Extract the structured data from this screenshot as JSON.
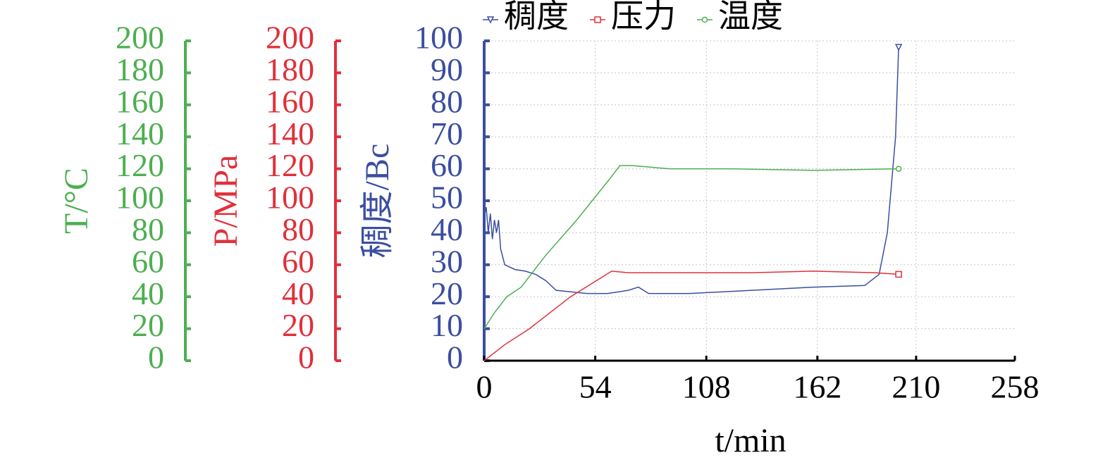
{
  "chart_data": {
    "type": "line",
    "xlabel": "t/min",
    "ylabel": "稠度/Bc",
    "y2label": "P/MPa",
    "y3label": "T/°C",
    "xlim": [
      0,
      258
    ],
    "xticks": [
      0,
      54,
      108,
      162,
      210,
      258
    ],
    "ylim": [
      0,
      100
    ],
    "yticks": [
      0,
      10,
      20,
      30,
      40,
      50,
      60,
      70,
      80,
      90,
      100
    ],
    "y2lim": [
      0,
      200
    ],
    "y2ticks": [
      0,
      20,
      40,
      60,
      80,
      100,
      120,
      140,
      160,
      180,
      200
    ],
    "y3lim": [
      0,
      200
    ],
    "y3ticks": [
      0,
      20,
      40,
      60,
      80,
      100,
      120,
      140,
      160,
      180,
      200
    ],
    "grid": true,
    "series": [
      {
        "name": "稠度",
        "color": "#3b4ea0",
        "axis": "y",
        "marker": "triangle",
        "x": [
          0,
          1,
          2,
          3,
          4,
          5,
          6,
          7,
          8,
          10,
          15,
          20,
          25,
          30,
          35,
          50,
          60,
          70,
          75,
          80,
          100,
          130,
          160,
          185,
          192,
          196,
          200,
          201.5
        ],
        "values": [
          45,
          48,
          40,
          46,
          38,
          44,
          40,
          44,
          35,
          30,
          28.5,
          28,
          27,
          25,
          22,
          21,
          21,
          22,
          23,
          21,
          21,
          22,
          23,
          23.5,
          27,
          40,
          70,
          98
        ]
      },
      {
        "name": "压力",
        "color": "#e0303a",
        "axis": "y2",
        "marker": "square",
        "x": [
          0,
          10,
          22,
          42,
          62,
          70,
          100,
          130,
          160,
          190,
          201.5
        ],
        "values": [
          0,
          10,
          20,
          40,
          56,
          55,
          55,
          55,
          56,
          55,
          54
        ]
      },
      {
        "name": "温度",
        "color": "#4caf50",
        "axis": "y3",
        "marker": "circle",
        "x": [
          0,
          5,
          11,
          18,
          30,
          45,
          60,
          66,
          72,
          90,
          120,
          160,
          201.5
        ],
        "values": [
          20,
          30,
          40,
          46,
          66,
          88,
          112,
          122,
          122,
          120,
          120,
          119,
          120
        ]
      }
    ]
  }
}
